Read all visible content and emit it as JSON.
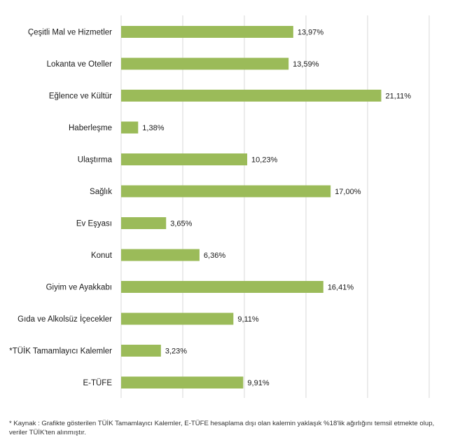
{
  "chart_data": {
    "type": "bar",
    "orientation": "horizontal",
    "categories": [
      "Çeşitli Mal ve Hizmetler",
      "Lokanta ve Oteller",
      "Eğlence ve Kültür",
      "Haberleşme",
      "Ulaştırma",
      "Sağlık",
      "Ev Eşyası",
      "Konut",
      "Giyim ve Ayakkabı",
      "Gıda ve Alkolsüz İçecekler",
      "*TÜİK Tamamlayıcı Kalemler",
      "E-TÜFE"
    ],
    "values": [
      13.97,
      13.59,
      21.11,
      1.38,
      10.23,
      17.0,
      3.65,
      6.36,
      16.41,
      9.11,
      3.23,
      9.91
    ],
    "value_labels": [
      "13,97%",
      "13,59%",
      "21,11%",
      "1,38%",
      "10,23%",
      "17,00%",
      "3,65%",
      "6,36%",
      "16,41%",
      "9,11%",
      "3,23%",
      "9,91%"
    ],
    "xlim": [
      0,
      25
    ],
    "grid": true,
    "bar_color": "#9bbb59",
    "grid_color": "#d9d9d9",
    "title": "",
    "xlabel": "",
    "ylabel": ""
  },
  "footnote": "* Kaynak : Grafikte gösterilen TÜİK Tamamlayıcı Kalemler, E-TÜFE hesaplama dışı olan kalemin yaklaşık %18'lik ağırlığını temsil etmekte olup, veriler TÜİK'ten alınmıştır."
}
